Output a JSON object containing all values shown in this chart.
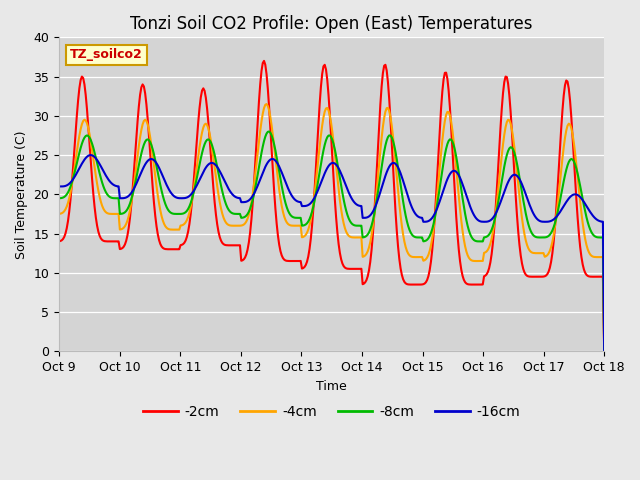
{
  "title": "Tonzi Soil CO2 Profile: Open (East) Temperatures",
  "xlabel": "Time",
  "ylabel": "Soil Temperature (C)",
  "ylim": [
    0,
    40
  ],
  "yticks": [
    0,
    5,
    10,
    15,
    20,
    25,
    30,
    35,
    40
  ],
  "background_color": "#e8e8e8",
  "plot_bg_color": "#d4d4d4",
  "legend_label": "TZ_soilco2",
  "series_labels": [
    "-2cm",
    "-4cm",
    "-8cm",
    "-16cm"
  ],
  "series_colors": [
    "#ff0000",
    "#ffa500",
    "#00bb00",
    "#0000cc"
  ],
  "line_width": 1.5,
  "title_fontsize": 12,
  "num_days": 9,
  "peaks_2cm": [
    35.0,
    34.0,
    33.5,
    37.0,
    36.5,
    36.5,
    35.5,
    35.0,
    34.5
  ],
  "mins_2cm": [
    14.0,
    13.0,
    13.5,
    11.5,
    10.5,
    8.5,
    8.5,
    9.5,
    9.5
  ],
  "peaks_4cm": [
    29.5,
    29.5,
    29.0,
    31.5,
    31.0,
    31.0,
    30.5,
    29.5,
    29.0
  ],
  "mins_4cm": [
    17.5,
    15.5,
    16.0,
    16.0,
    14.5,
    12.0,
    11.5,
    12.5,
    12.0
  ],
  "peaks_8cm": [
    27.5,
    27.0,
    27.0,
    28.0,
    27.5,
    27.5,
    27.0,
    26.0,
    24.5
  ],
  "mins_8cm": [
    19.5,
    17.5,
    17.5,
    17.0,
    16.0,
    14.5,
    14.0,
    14.5,
    14.5
  ],
  "peaks_16cm": [
    25.0,
    24.5,
    24.0,
    24.5,
    24.0,
    24.0,
    23.0,
    22.5,
    20.0
  ],
  "mins_16cm": [
    21.0,
    19.5,
    19.5,
    19.0,
    18.5,
    17.0,
    16.5,
    16.5,
    16.5
  ],
  "peak_phase_2cm": 0.38,
  "peak_phase_4cm": 0.42,
  "peak_phase_8cm": 0.46,
  "peak_phase_16cm": 0.52,
  "sharpness_2cm": 3.5,
  "sharpness_4cm": 2.5,
  "sharpness_8cm": 2.0,
  "sharpness_16cm": 1.5
}
